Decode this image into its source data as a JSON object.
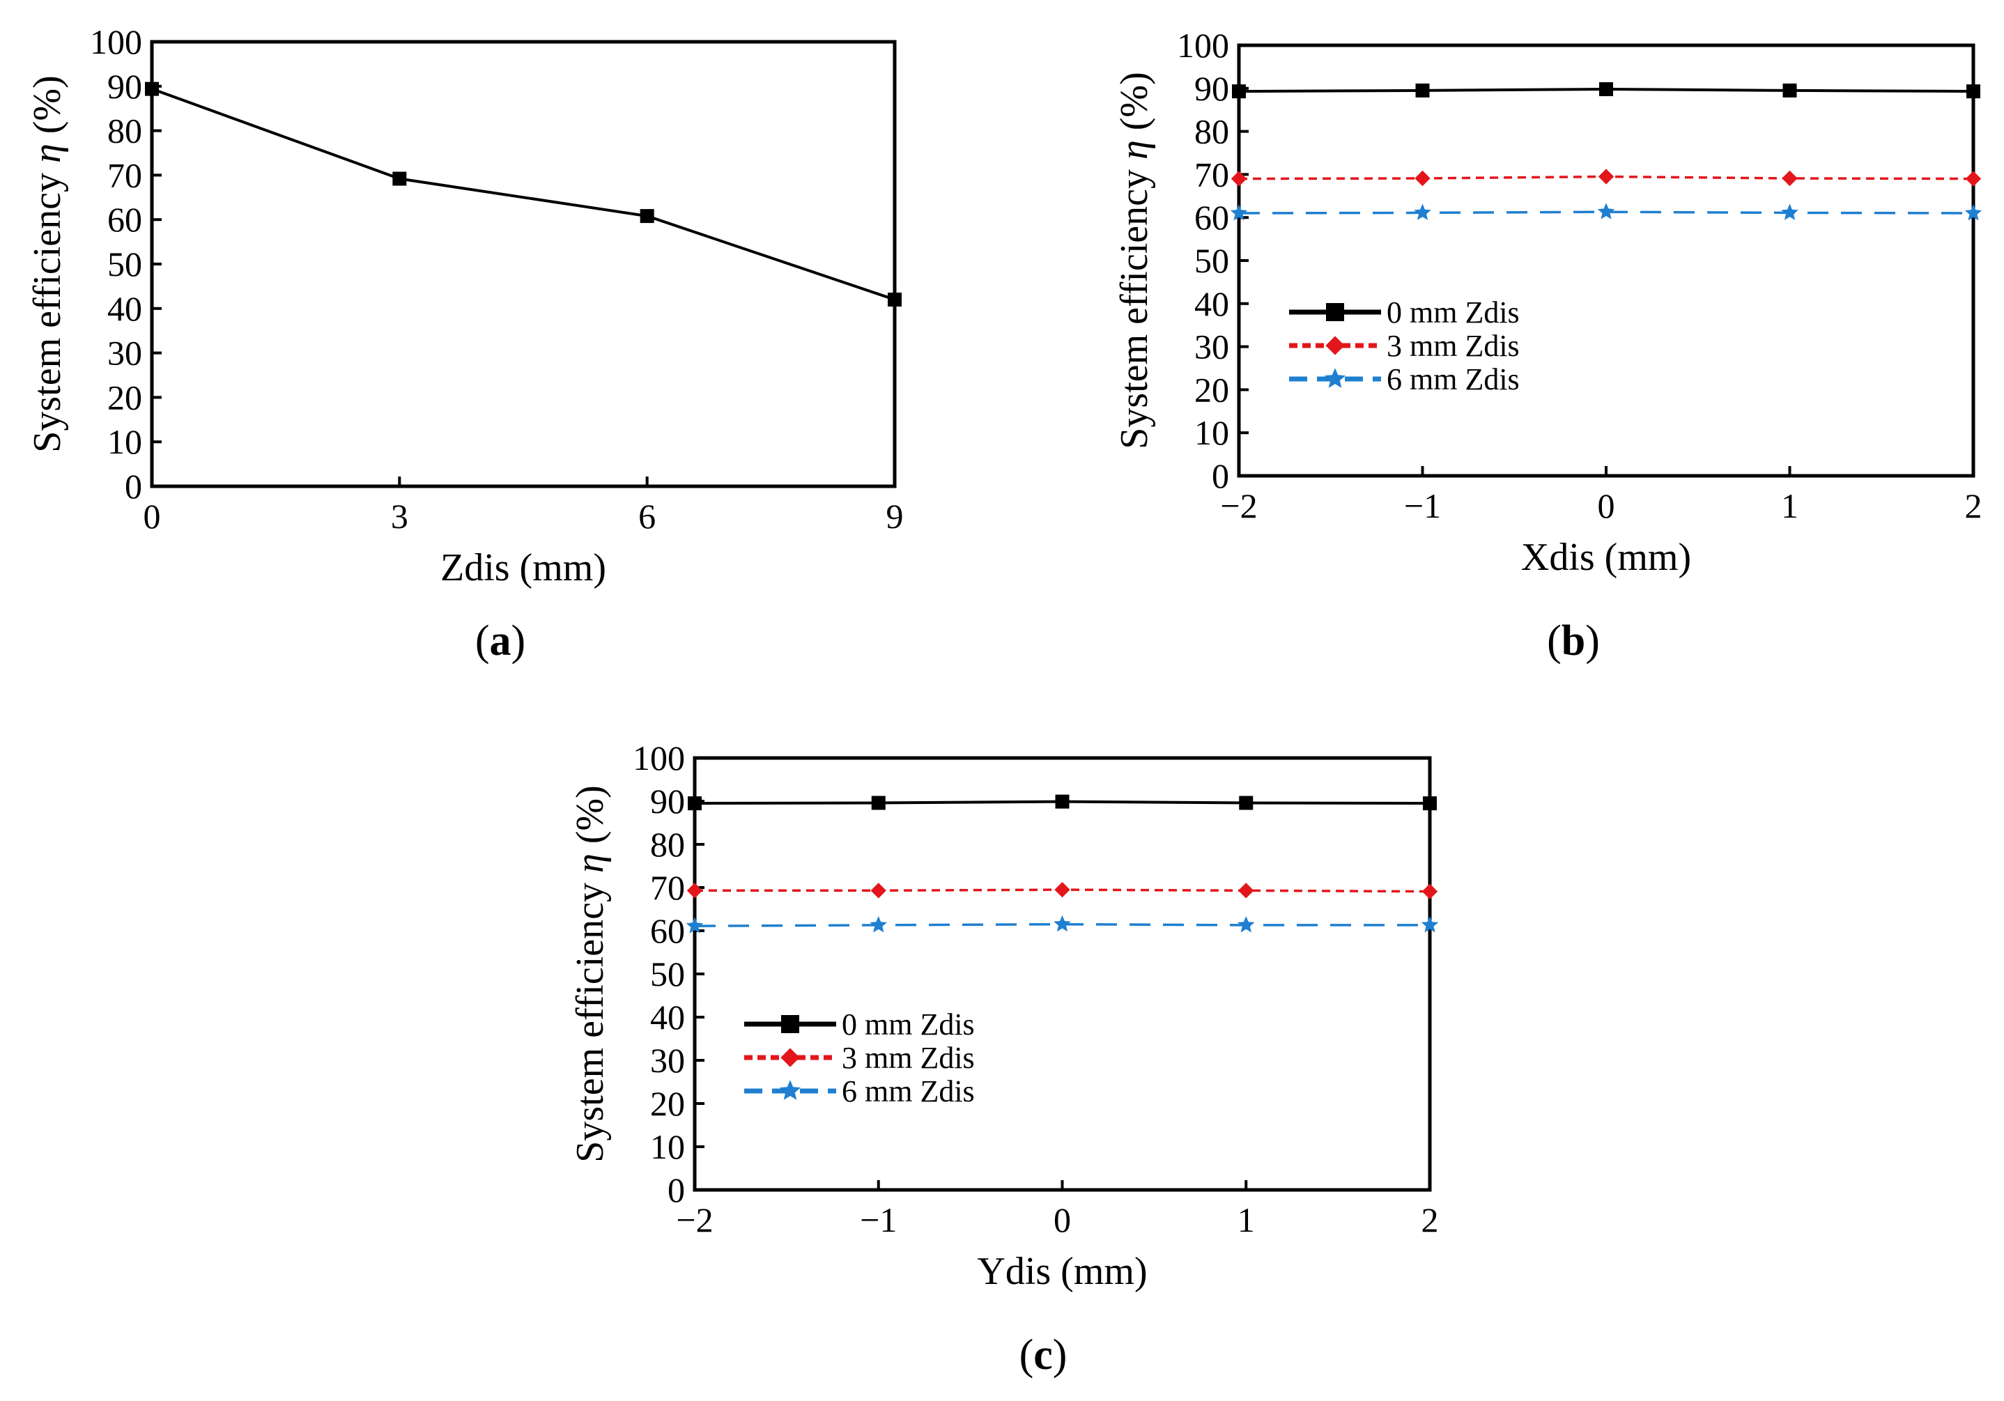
{
  "figure": {
    "panel_labels": [
      {
        "open": "(",
        "letter": "a",
        "close": ")"
      },
      {
        "open": "(",
        "letter": "b",
        "close": ")"
      },
      {
        "open": "(",
        "letter": "c",
        "close": ")"
      }
    ]
  },
  "chart_data": [
    {
      "id": "a",
      "type": "line",
      "xlabel": "Zdis (mm)",
      "ylabel_text": "System efficiency",
      "ylabel_symbol": "η",
      "ylabel_unit": "(%)",
      "x_ticks": [
        0,
        3,
        6,
        9
      ],
      "x_tick_labels": [
        "0",
        "3",
        "6",
        "9"
      ],
      "y_ticks": [
        0,
        10,
        20,
        30,
        40,
        50,
        60,
        70,
        80,
        90,
        100
      ],
      "y_tick_labels": [
        "0",
        "10",
        "20",
        "30",
        "40",
        "50",
        "60",
        "70",
        "80",
        "90",
        "100"
      ],
      "xlim": [
        0,
        9
      ],
      "ylim": [
        0,
        100
      ],
      "legend": false,
      "series": [
        {
          "name": "",
          "x": [
            0,
            3,
            6,
            9
          ],
          "values": [
            89.4,
            69.2,
            60.8,
            42.0
          ],
          "color": "#000000",
          "marker": "square",
          "dash": "solid"
        }
      ]
    },
    {
      "id": "b",
      "type": "line",
      "xlabel": "Xdis (mm)",
      "ylabel_text": "System efficiency",
      "ylabel_symbol": "η",
      "ylabel_unit": "(%)",
      "x_ticks": [
        -2,
        -1,
        0,
        1,
        2
      ],
      "x_tick_labels": [
        "−2",
        "−1",
        "0",
        "1",
        "2"
      ],
      "y_ticks": [
        0,
        10,
        20,
        30,
        40,
        50,
        60,
        70,
        80,
        90,
        100
      ],
      "y_tick_labels": [
        "0",
        "10",
        "20",
        "30",
        "40",
        "50",
        "60",
        "70",
        "80",
        "90",
        "100"
      ],
      "xlim": [
        -2,
        2
      ],
      "ylim": [
        0,
        100
      ],
      "legend": true,
      "legend_position": "center-left",
      "series": [
        {
          "name": "0 mm Zdis",
          "x": [
            -2,
            -1,
            0,
            1,
            2
          ],
          "values": [
            89.3,
            89.5,
            89.8,
            89.5,
            89.3
          ],
          "color": "#000000",
          "marker": "square",
          "dash": "solid"
        },
        {
          "name": "3 mm Zdis",
          "x": [
            -2,
            -1,
            0,
            1,
            2
          ],
          "values": [
            69.0,
            69.1,
            69.5,
            69.1,
            69.0
          ],
          "color": "#e3161b",
          "marker": "diamond",
          "dash": "dotted"
        },
        {
          "name": "6 mm Zdis",
          "x": [
            -2,
            -1,
            0,
            1,
            2
          ],
          "values": [
            61.0,
            61.1,
            61.3,
            61.1,
            61.0
          ],
          "color": "#1f7fd0",
          "marker": "star",
          "dash": "dashed"
        }
      ]
    },
    {
      "id": "c",
      "type": "line",
      "xlabel": "Ydis (mm)",
      "ylabel_text": "System efficiency",
      "ylabel_symbol": "η",
      "ylabel_unit": "(%)",
      "x_ticks": [
        -2,
        -1,
        0,
        1,
        2
      ],
      "x_tick_labels": [
        "−2",
        "−1",
        "0",
        "1",
        "2"
      ],
      "y_ticks": [
        0,
        10,
        20,
        30,
        40,
        50,
        60,
        70,
        80,
        90,
        100
      ],
      "y_tick_labels": [
        "0",
        "10",
        "20",
        "30",
        "40",
        "50",
        "60",
        "70",
        "80",
        "90",
        "100"
      ],
      "xlim": [
        -2,
        2
      ],
      "ylim": [
        0,
        100
      ],
      "legend": true,
      "legend_position": "center-left",
      "series": [
        {
          "name": "0 mm Zdis",
          "x": [
            -2,
            -1,
            0,
            1,
            2
          ],
          "values": [
            89.5,
            89.6,
            89.9,
            89.6,
            89.5
          ],
          "color": "#000000",
          "marker": "square",
          "dash": "solid"
        },
        {
          "name": "3 mm Zdis",
          "x": [
            -2,
            -1,
            0,
            1,
            2
          ],
          "values": [
            69.3,
            69.3,
            69.5,
            69.3,
            69.1
          ],
          "color": "#e3161b",
          "marker": "diamond",
          "dash": "dotted"
        },
        {
          "name": "6 mm Zdis",
          "x": [
            -2,
            -1,
            0,
            1,
            2
          ],
          "values": [
            61.1,
            61.3,
            61.5,
            61.3,
            61.3
          ],
          "color": "#1f7fd0",
          "marker": "star",
          "dash": "dashed"
        }
      ]
    }
  ]
}
